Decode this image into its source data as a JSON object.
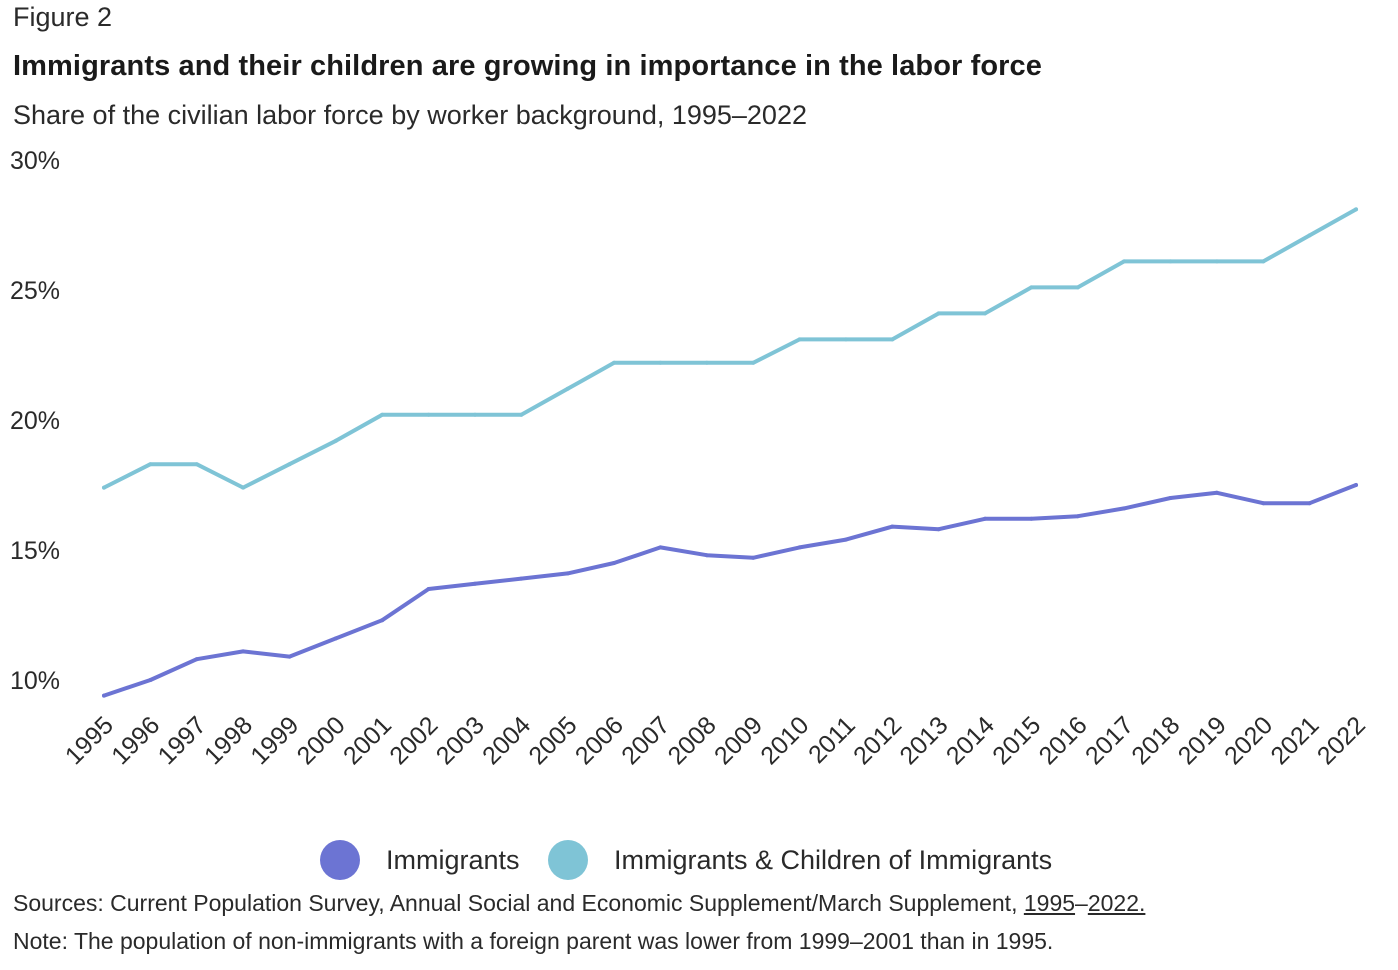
{
  "figure_label": "Figure 2",
  "chart_data": {
    "type": "line",
    "title": "Immigrants and their children are growing in importance in the labor force",
    "subtitle": "Share of the civilian labor force by worker background, 1995–2022",
    "xlabel": "",
    "ylabel": "",
    "ylim": [
      9.4,
      30
    ],
    "grid": false,
    "legend_position": "bottom",
    "y_ticks": [
      "10%",
      "15%",
      "20%",
      "25%",
      "30%"
    ],
    "y_tick_values": [
      10,
      15,
      20,
      25,
      30
    ],
    "x": [
      "1995",
      "1996",
      "1997",
      "1998",
      "1999",
      "2000",
      "2001",
      "2002",
      "2003",
      "2004",
      "2005",
      "2006",
      "2007",
      "2008",
      "2009",
      "2010",
      "2011",
      "2012",
      "2013",
      "2014",
      "2015",
      "2016",
      "2017",
      "2018",
      "2019",
      "2020",
      "2021",
      "2022"
    ],
    "series": [
      {
        "name": "Immigrants",
        "color": "#6c74d3",
        "values": [
          9.4,
          10.0,
          10.8,
          11.1,
          10.9,
          11.6,
          12.3,
          13.5,
          13.7,
          13.9,
          14.1,
          14.5,
          15.1,
          14.8,
          14.7,
          15.1,
          15.4,
          15.9,
          15.8,
          16.2,
          16.2,
          16.3,
          16.6,
          17.0,
          17.2,
          16.8,
          16.8,
          17.5
        ]
      },
      {
        "name": "Immigrants & Children of Immigrants",
        "color": "#7fc4d6",
        "values": [
          17.4,
          18.3,
          18.3,
          17.4,
          18.3,
          19.2,
          20.2,
          20.2,
          20.2,
          20.2,
          21.2,
          22.2,
          22.2,
          22.2,
          22.2,
          23.1,
          23.1,
          23.1,
          24.1,
          24.1,
          25.1,
          25.1,
          26.1,
          26.1,
          26.1,
          26.1,
          27.1,
          28.1
        ]
      }
    ]
  },
  "sources": {
    "prefix": "Sources: Current Population Survey, Annual Social and Economic Supplement/March Supplement, ",
    "link1": "1995",
    "dash": "–",
    "link2": "2022."
  },
  "note": "Note: The population of non-immigrants with a foreign parent was lower from 1999–2001 than in 1995."
}
